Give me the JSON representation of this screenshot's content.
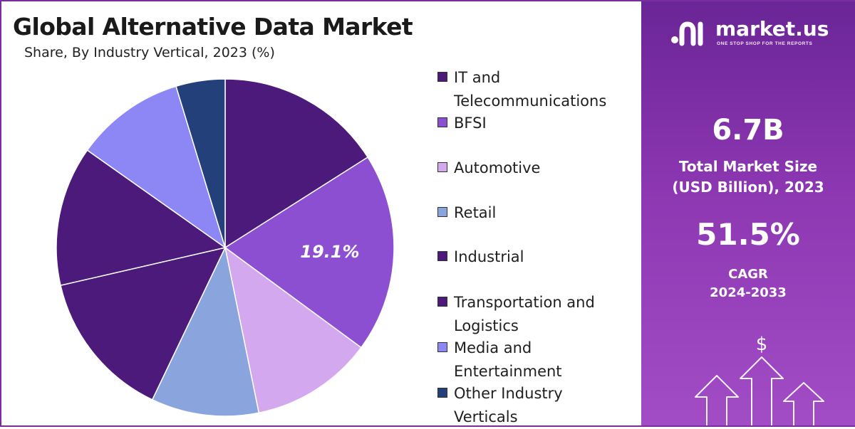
{
  "header": {
    "title": "Global Alternative Data Market",
    "subtitle": "Share, By Industry Vertical, 2023 (%)"
  },
  "legend": [
    {
      "line1": "IT and",
      "line2": "Telecommunications",
      "color": "#4b1a7a"
    },
    {
      "line1": "BFSI",
      "line2": "",
      "color": "#8c4fd1"
    },
    {
      "line1": "Automotive",
      "line2": "",
      "color": "#d3a8ef"
    },
    {
      "line1": "Retail",
      "line2": "",
      "color": "#8aa4de"
    },
    {
      "line1": "Industrial",
      "line2": "",
      "color": "#4b1a7a"
    },
    {
      "line1": "Transportation and",
      "line2": "Logistics",
      "color": "#4b1a7a"
    },
    {
      "line1": "Media and",
      "line2": "Entertainment",
      "color": "#8d87f5"
    },
    {
      "line1": "Other Industry",
      "line2": "Verticals",
      "color": "#24407a"
    }
  ],
  "brand": {
    "name": "market.us",
    "tagline": "ONE STOP SHOP FOR THE REPORTS"
  },
  "stats": {
    "market_size": "6.7B",
    "market_size_label_1": "Total Market Size",
    "market_size_label_2": "(USD Billion), 2023",
    "cagr": "51.5%",
    "cagr_label_1": "CAGR",
    "cagr_label_2": "2024-2033"
  },
  "icons": {
    "currency": "dollar-sign-icon",
    "growth": "up-arrow-icon"
  },
  "colors": {
    "accent": "#7a2d9c",
    "panel_top": "#6a2596",
    "panel_bottom": "#a24cc6"
  },
  "chart_data": {
    "type": "pie",
    "title": "Global Alternative Data Market",
    "subtitle": "Share, By Industry Vertical, 2023 (%)",
    "slices": [
      {
        "label": "IT and Telecommunications",
        "value": 16.0,
        "color": "#4b1a7a",
        "shown_label": ""
      },
      {
        "label": "BFSI",
        "value": 19.1,
        "color": "#8c4fd1",
        "shown_label": "19.1%"
      },
      {
        "label": "Automotive",
        "value": 11.7,
        "color": "#d3a8ef",
        "shown_label": ""
      },
      {
        "label": "Retail",
        "value": 10.3,
        "color": "#8aa4de",
        "shown_label": ""
      },
      {
        "label": "Transportation and Logistics",
        "value": 14.3,
        "color": "#4b1a7a",
        "shown_label": ""
      },
      {
        "label": "Industrial",
        "value": 13.4,
        "color": "#4b1a7a",
        "shown_label": ""
      },
      {
        "label": "Media and Entertainment",
        "value": 10.5,
        "color": "#8d87f5",
        "shown_label": ""
      },
      {
        "label": "Other Industry Verticals",
        "value": 4.7,
        "color": "#24407a",
        "shown_label": ""
      }
    ],
    "legend_position": "right"
  }
}
